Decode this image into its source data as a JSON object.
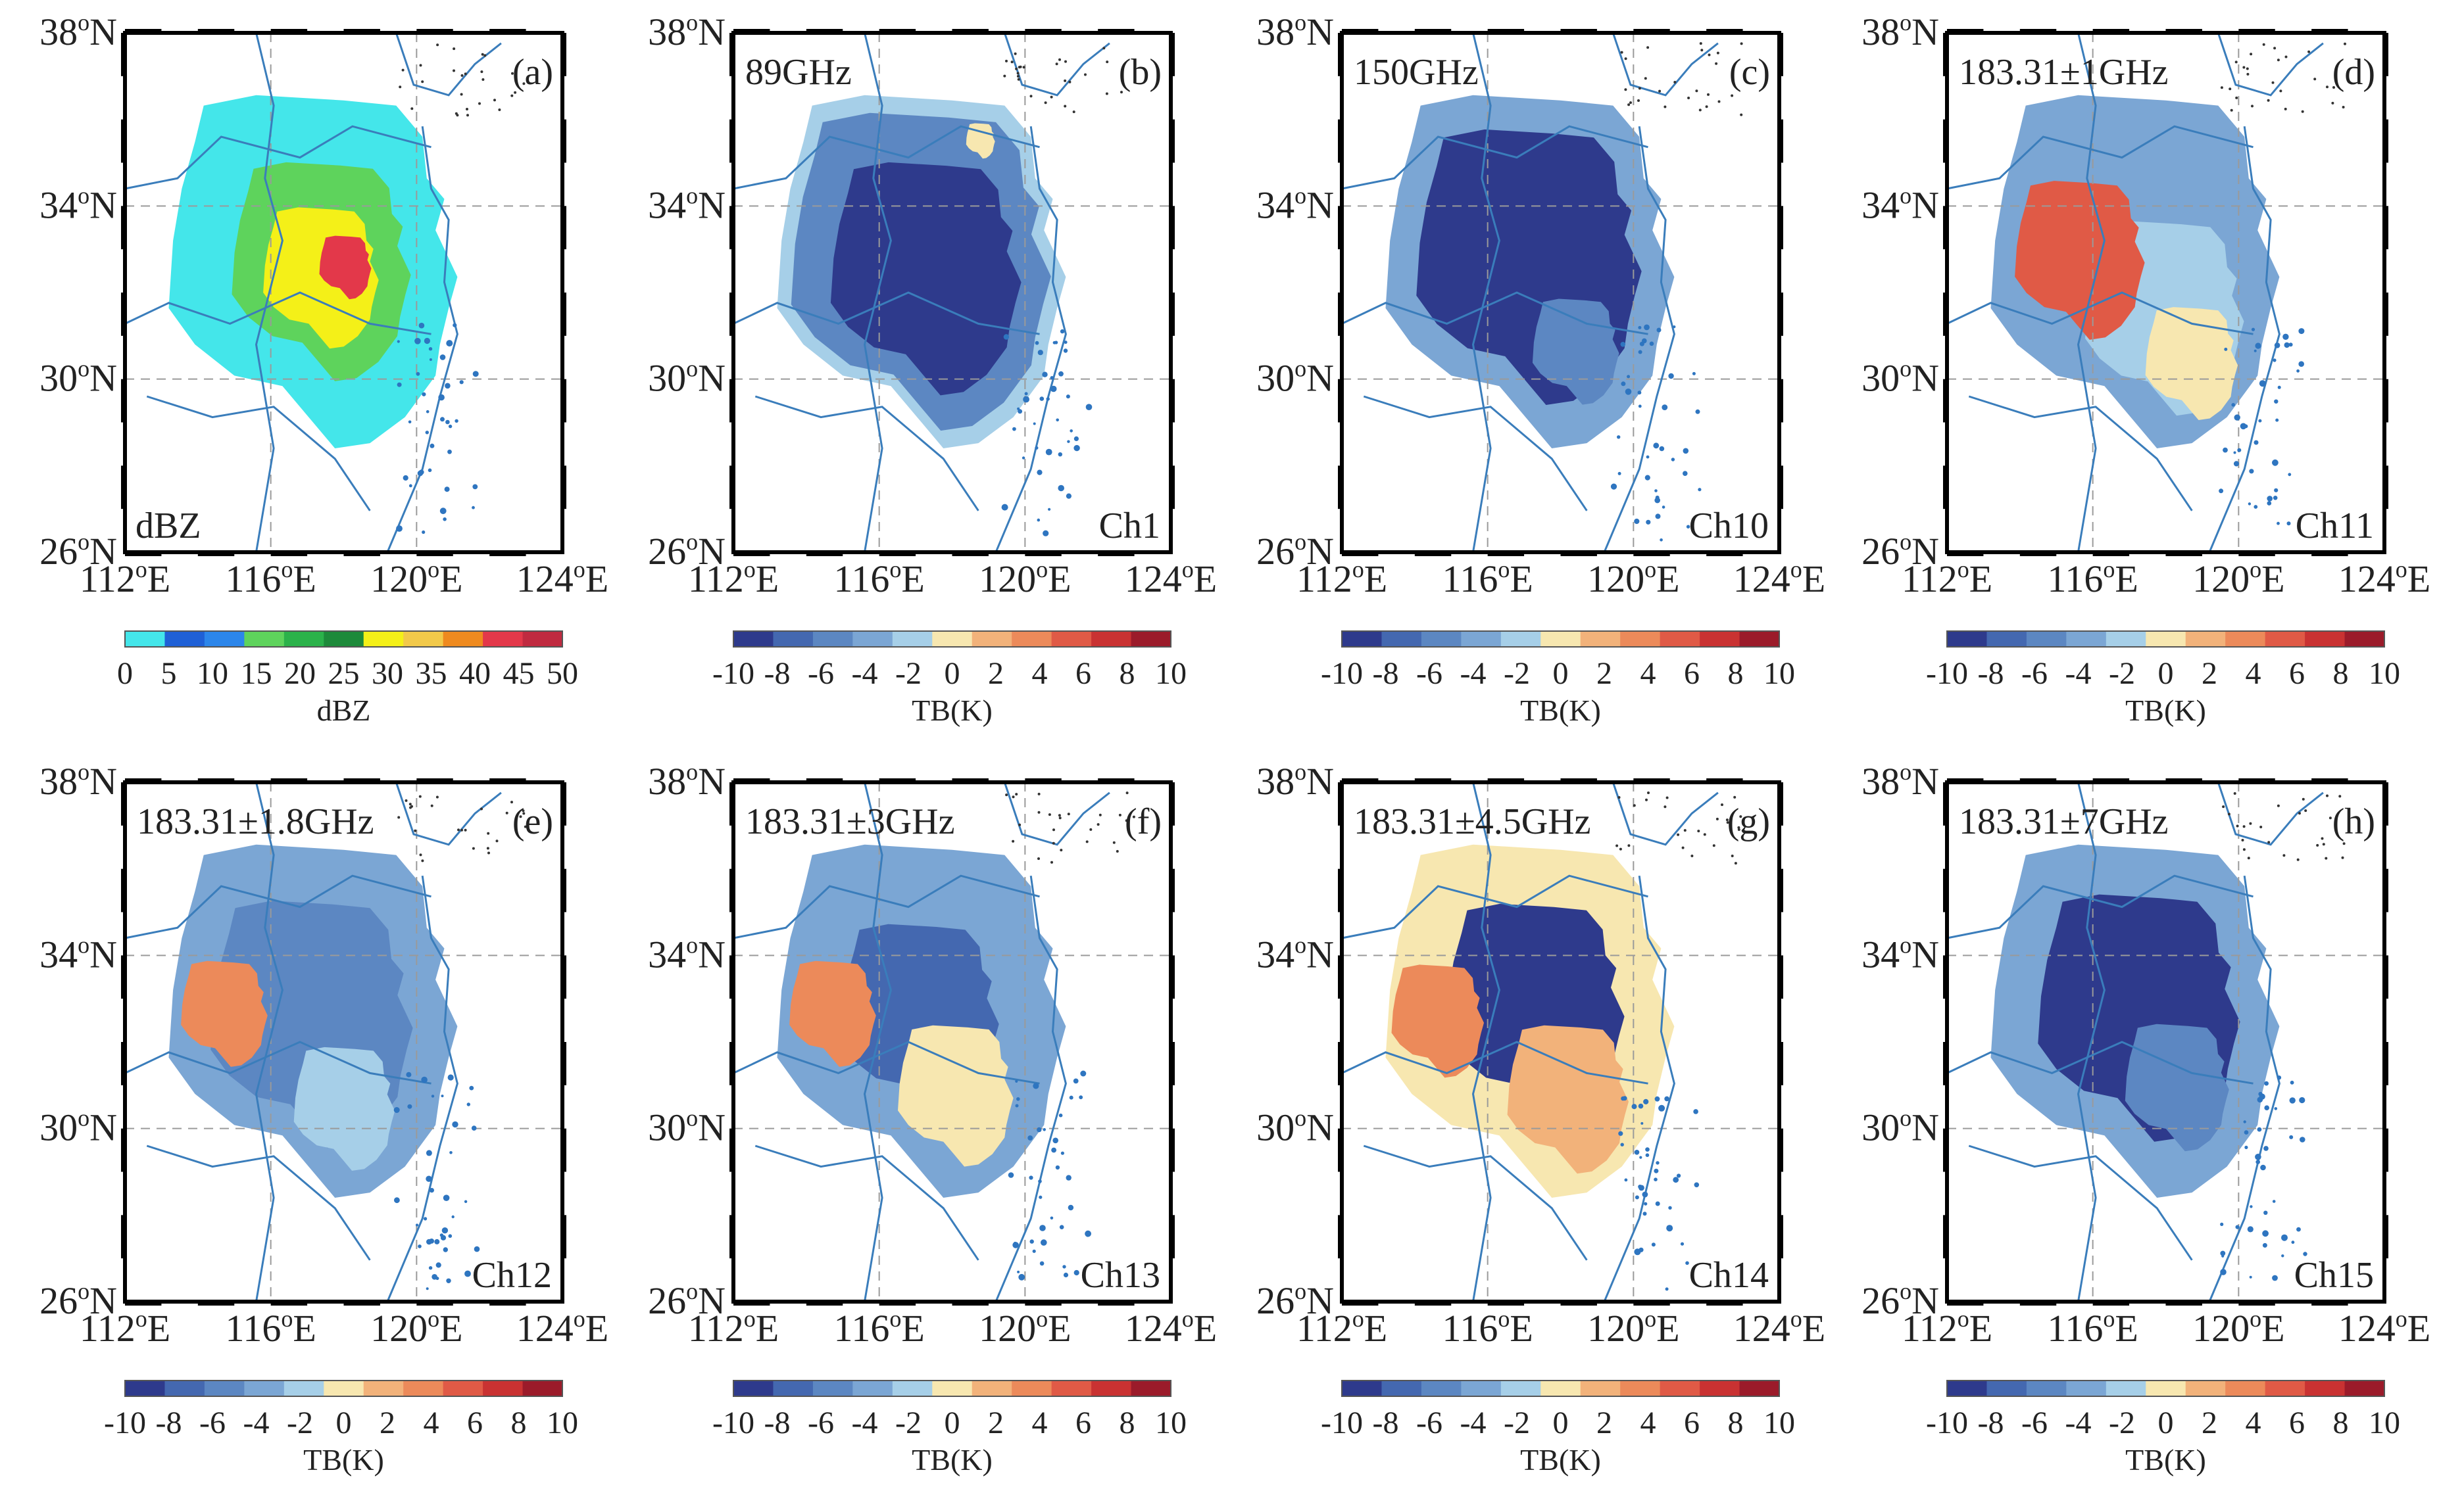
{
  "figure": {
    "lat_ticks": [
      "38",
      "34",
      "30",
      "26"
    ],
    "lon_ticks": [
      "112",
      "116",
      "120",
      "124"
    ],
    "lat_suffix": "N",
    "lon_suffix": "E",
    "degree_mark": "o"
  },
  "colorbars": {
    "dbz": {
      "ticks": [
        "0",
        "5",
        "10",
        "15",
        "20",
        "25",
        "30",
        "35",
        "40",
        "45",
        "50"
      ],
      "colors": [
        "#44e6ea",
        "#1f60d6",
        "#2c86ea",
        "#5ed35c",
        "#2bb24a",
        "#1d8a3a",
        "#f4f018",
        "#f2c94a",
        "#ef8a1f",
        "#e3384a",
        "#c02a40"
      ]
    },
    "tb": {
      "ticks": [
        "-10",
        "-8",
        "-6",
        "-4",
        "-2",
        "0",
        "2",
        "4",
        "6",
        "8",
        "10"
      ],
      "colors": [
        "#2e3a8c",
        "#4468b0",
        "#5c87c2",
        "#7ba6d4",
        "#a6cfe8",
        "#f7e7b0",
        "#f2b27a",
        "#ec8a5a",
        "#e05a46",
        "#c93232",
        "#9b1b2a"
      ]
    }
  },
  "panels": [
    {
      "letter": "(a)",
      "title": "",
      "channel": "dBZ",
      "colorbar_title": "dBZ",
      "colorbar": "dbz"
    },
    {
      "letter": "(b)",
      "title": "89GHz",
      "channel": "Ch1",
      "colorbar_title": "TB(K)",
      "colorbar": "tb"
    },
    {
      "letter": "(c)",
      "title": "150GHz",
      "channel": "Ch10",
      "colorbar_title": "TB(K)",
      "colorbar": "tb"
    },
    {
      "letter": "(d)",
      "title": "183.31±1GHz",
      "channel": "Ch11",
      "colorbar_title": "TB(K)",
      "colorbar": "tb"
    },
    {
      "letter": "(e)",
      "title": "183.31±1.8GHz",
      "channel": "Ch12",
      "colorbar_title": "TB(K)",
      "colorbar": "tb"
    },
    {
      "letter": "(f)",
      "title": "183.31±3GHz",
      "channel": "Ch13",
      "colorbar_title": "TB(K)",
      "colorbar": "tb"
    },
    {
      "letter": "(g)",
      "title": "183.31±4.5GHz",
      "channel": "Ch14",
      "colorbar_title": "TB(K)",
      "colorbar": "tb"
    },
    {
      "letter": "(h)",
      "title": "183.31±7GHz",
      "channel": "Ch15",
      "colorbar_title": "TB(K)",
      "colorbar": "tb"
    }
  ]
}
